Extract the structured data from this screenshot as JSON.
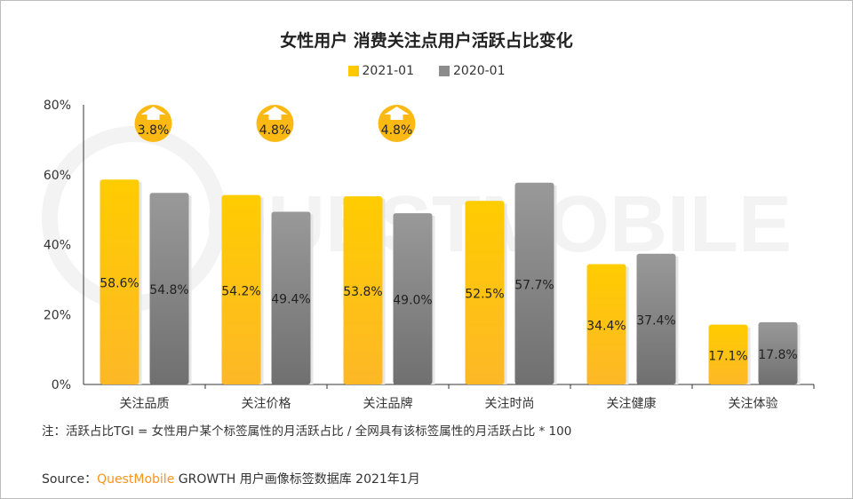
{
  "chart_data": {
    "type": "bar",
    "title": "女性用户 消费关注点用户活跃占比变化",
    "categories": [
      "关注品质",
      "关注价格",
      "关注品牌",
      "关注时尚",
      "关注健康",
      "关注体验"
    ],
    "series": [
      {
        "name": "2021-01",
        "values": [
          58.6,
          54.2,
          53.8,
          52.5,
          34.4,
          17.1
        ],
        "labels": [
          "58.6%",
          "54.2%",
          "53.8%",
          "52.5%",
          "34.4%",
          "17.1%"
        ],
        "color": "#ffc800"
      },
      {
        "name": "2020-01",
        "values": [
          54.8,
          49.4,
          49.0,
          57.7,
          37.4,
          17.8
        ],
        "labels": [
          "54.8%",
          "49.4%",
          "49.0%",
          "57.7%",
          "37.4%",
          "17.8%"
        ],
        "color": "#8c8c8c"
      }
    ],
    "yticks": [
      "0%",
      "20%",
      "40%",
      "60%",
      "80%"
    ],
    "ylim": [
      0,
      80
    ],
    "grid": false,
    "legend": "top",
    "annotations": [
      {
        "category": "关注品质",
        "text": "3.8%",
        "icon": "up-arrow-icon"
      },
      {
        "category": "关注价格",
        "text": "4.8%",
        "icon": "up-arrow-icon"
      },
      {
        "category": "关注品牌",
        "text": "4.8%",
        "icon": "up-arrow-icon"
      }
    ]
  },
  "note": "注：活跃占比TGI = 女性用户某个标签属性的月活跃占比 / 全网具有该标签属性的月活跃占比 * 100",
  "source": {
    "prefix": "Source：",
    "brand": "QuestMobile",
    "rest": " GROWTH 用户画像标签数据库 2021年1月"
  },
  "watermark": "QUESTMOBILE"
}
